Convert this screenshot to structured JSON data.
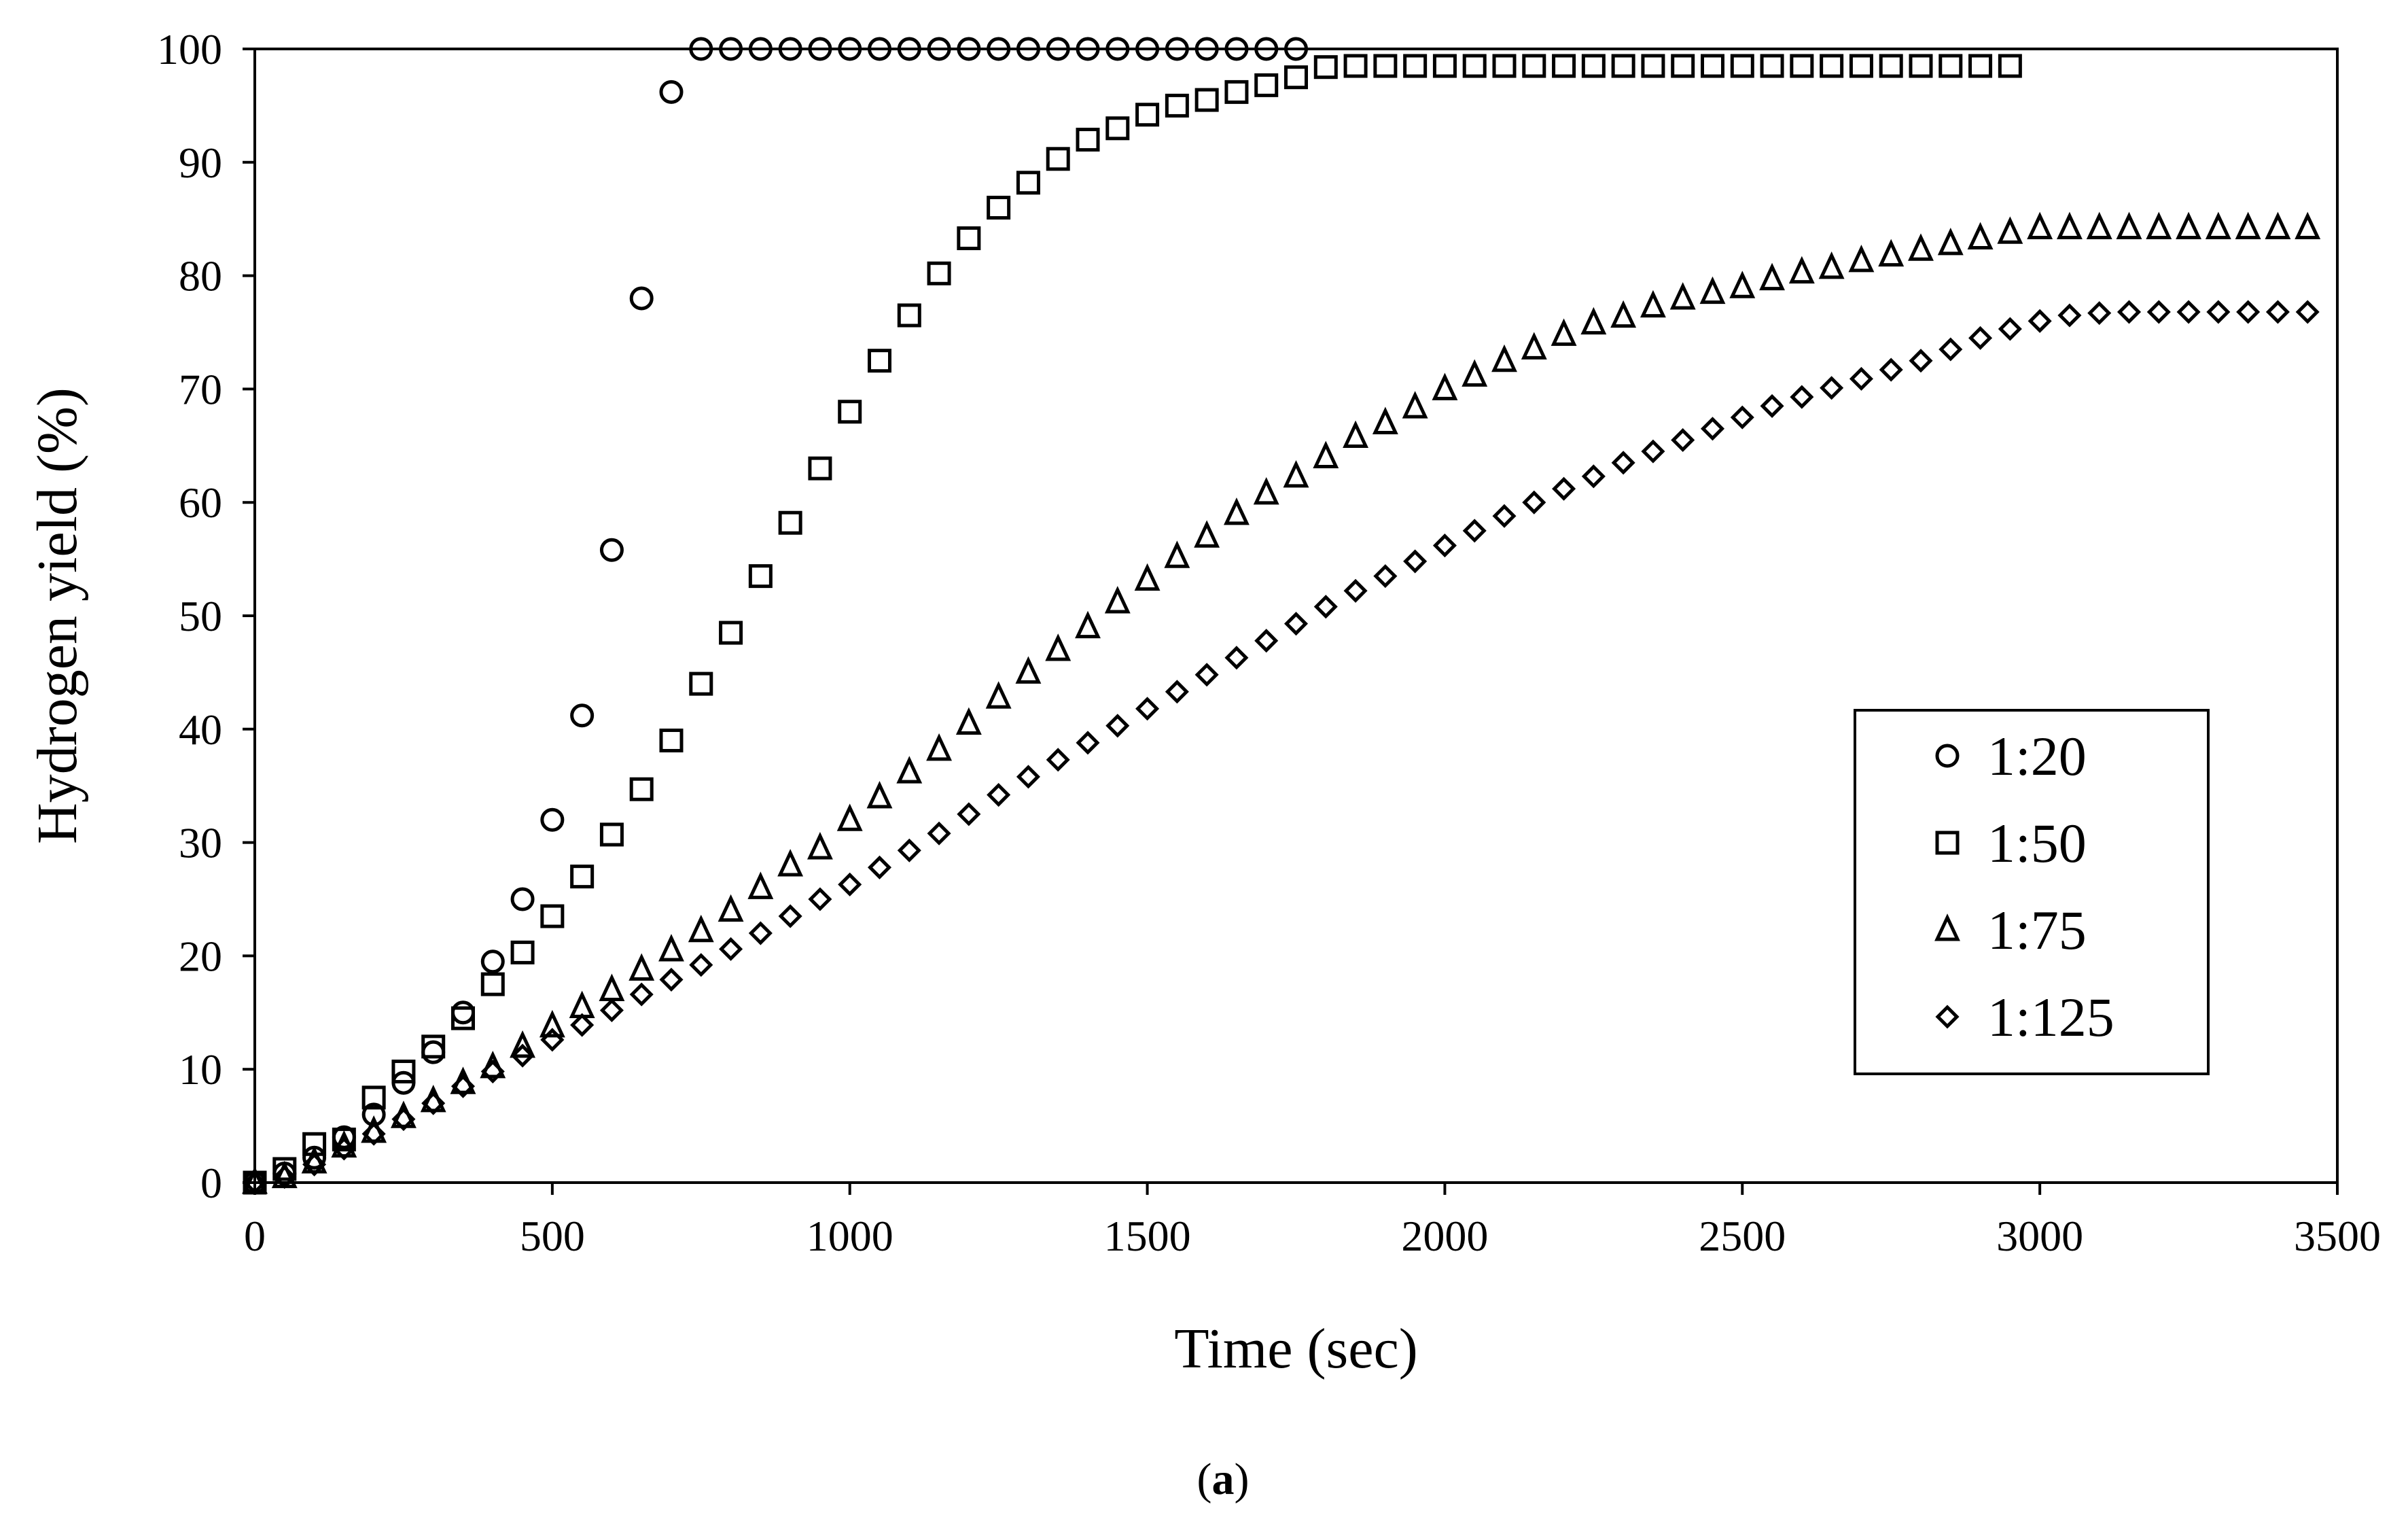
{
  "chart_data": {
    "type": "scatter",
    "title": "",
    "xlabel": "Time (sec)",
    "ylabel": "Hydrogen yield (%)",
    "xlim": [
      0,
      3500
    ],
    "ylim": [
      0,
      100
    ],
    "xticks": [
      0,
      500,
      1000,
      1500,
      2000,
      2500,
      3000,
      3500
    ],
    "yticks": [
      0,
      10,
      20,
      30,
      40,
      50,
      60,
      70,
      80,
      90,
      100
    ],
    "grid": false,
    "legend_position": "lower-right",
    "series": [
      {
        "name": "1:20",
        "marker": "circle",
        "x": [
          0,
          50,
          100,
          150,
          200,
          250,
          300,
          350,
          400,
          450,
          500,
          550,
          600,
          650,
          700,
          750,
          800,
          850,
          900,
          950,
          1000,
          1050,
          1100,
          1150,
          1200,
          1250,
          1300,
          1350,
          1400,
          1450,
          1500,
          1550,
          1600,
          1650,
          1700,
          1750
        ],
        "y": [
          0,
          0.8,
          2.2,
          4,
          6,
          8.8,
          11.5,
          15,
          19.5,
          25,
          32,
          41.2,
          55.8,
          78,
          96.2,
          100,
          100,
          100,
          100,
          100,
          100,
          100,
          100,
          100,
          100,
          100,
          100,
          100,
          100,
          100,
          100,
          100,
          100,
          100,
          100,
          100
        ]
      },
      {
        "name": "1:50",
        "marker": "square",
        "x": [
          0,
          50,
          100,
          150,
          200,
          250,
          300,
          350,
          400,
          450,
          500,
          550,
          600,
          650,
          700,
          750,
          800,
          850,
          900,
          950,
          1000,
          1050,
          1100,
          1150,
          1200,
          1250,
          1300,
          1350,
          1400,
          1450,
          1500,
          1550,
          1600,
          1650,
          1700,
          1750,
          1800,
          1850,
          1900,
          1950,
          2000,
          2050,
          2100,
          2150,
          2200,
          2250,
          2300,
          2350,
          2400,
          2450,
          2500,
          2550,
          2600,
          2650,
          2700,
          2750,
          2800,
          2850,
          2900,
          2950
        ],
        "y": [
          0,
          1.2,
          3.4,
          3.8,
          7.5,
          9.8,
          12,
          14.5,
          17.5,
          20.3,
          23.5,
          27,
          30.7,
          34.7,
          39,
          44,
          48.5,
          53.5,
          58.2,
          63,
          68,
          72.5,
          76.5,
          80.2,
          83.3,
          86,
          88.2,
          90.3,
          92,
          93,
          94.2,
          95,
          95.5,
          96.2,
          96.8,
          97.5,
          98.4,
          98.5,
          98.5,
          98.5,
          98.5,
          98.5,
          98.5,
          98.5,
          98.5,
          98.5,
          98.5,
          98.5,
          98.5,
          98.5,
          98.5,
          98.5,
          98.5,
          98.5,
          98.5,
          98.5,
          98.5,
          98.5,
          98.5,
          98.5
        ]
      },
      {
        "name": "1:75",
        "marker": "triangle",
        "x": [
          0,
          50,
          100,
          150,
          200,
          250,
          300,
          350,
          400,
          450,
          500,
          550,
          600,
          650,
          700,
          750,
          800,
          850,
          900,
          950,
          1000,
          1050,
          1100,
          1150,
          1200,
          1250,
          1300,
          1350,
          1400,
          1450,
          1500,
          1550,
          1600,
          1650,
          1700,
          1750,
          1800,
          1850,
          1900,
          1950,
          2000,
          2050,
          2100,
          2150,
          2200,
          2250,
          2300,
          2350,
          2400,
          2450,
          2500,
          2550,
          2600,
          2650,
          2700,
          2750,
          2800,
          2850,
          2900,
          2950,
          3000,
          3050,
          3100,
          3150,
          3200,
          3250,
          3300,
          3350,
          3400,
          3450
        ],
        "y": [
          0,
          0.5,
          1.8,
          3.2,
          4.5,
          5.8,
          7.2,
          8.8,
          10.2,
          12,
          13.8,
          15.5,
          17,
          18.8,
          20.5,
          22.2,
          24,
          26,
          28,
          29.5,
          32,
          34,
          36.2,
          38.2,
          40.5,
          42.8,
          45,
          47,
          49,
          51.2,
          53.2,
          55.2,
          57,
          59,
          60.8,
          62.3,
          64,
          65.8,
          67,
          68.4,
          70,
          71.2,
          72.5,
          73.6,
          74.8,
          75.8,
          76.4,
          77.3,
          78,
          78.5,
          79,
          79.7,
          80.3,
          80.7,
          81.3,
          81.8,
          82.3,
          82.8,
          83.3,
          83.8,
          84.2,
          84.2,
          84.2,
          84.2,
          84.2,
          84.2,
          84.2,
          84.2,
          84.2,
          84.2
        ]
      },
      {
        "name": "1:125",
        "marker": "diamond",
        "x": [
          0,
          50,
          100,
          150,
          200,
          250,
          300,
          350,
          400,
          450,
          500,
          550,
          600,
          650,
          700,
          750,
          800,
          850,
          900,
          950,
          1000,
          1050,
          1100,
          1150,
          1200,
          1250,
          1300,
          1350,
          1400,
          1450,
          1500,
          1550,
          1600,
          1650,
          1700,
          1750,
          1800,
          1850,
          1900,
          1950,
          2000,
          2050,
          2100,
          2150,
          2200,
          2250,
          2300,
          2350,
          2400,
          2450,
          2500,
          2550,
          2600,
          2650,
          2700,
          2750,
          2800,
          2850,
          2900,
          2950,
          3000,
          3050,
          3100,
          3150,
          3200,
          3250,
          3300,
          3350,
          3400,
          3450
        ],
        "y": [
          0,
          0.5,
          1.6,
          3,
          4.3,
          5.6,
          7,
          8.5,
          9.8,
          11.2,
          12.6,
          13.9,
          15.2,
          16.6,
          17.9,
          19.2,
          20.6,
          22,
          23.5,
          25,
          26.3,
          27.8,
          29.3,
          30.8,
          32.5,
          34.2,
          35.8,
          37.3,
          38.8,
          40.3,
          41.8,
          43.3,
          44.8,
          46.3,
          47.8,
          49.3,
          50.8,
          52.2,
          53.5,
          54.8,
          56.2,
          57.5,
          58.8,
          60,
          61.2,
          62.3,
          63.5,
          64.5,
          65.5,
          66.5,
          67.5,
          68.5,
          69.3,
          70.1,
          70.9,
          71.7,
          72.5,
          73.5,
          74.5,
          75.3,
          76,
          76.5,
          76.7,
          76.8,
          76.8,
          76.8,
          76.8,
          76.8,
          76.8,
          76.8
        ]
      }
    ]
  },
  "caption": {
    "open": "(",
    "letter": "a",
    "close": ")"
  }
}
